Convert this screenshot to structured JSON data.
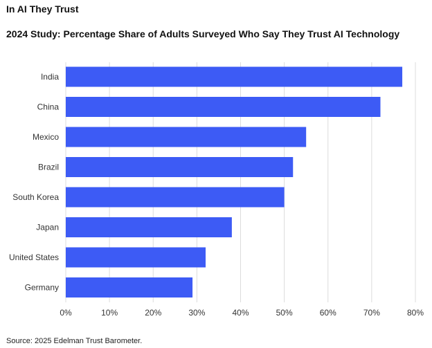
{
  "title": "In AI They Trust",
  "subtitle": "2024 Study: Percentage Share of Adults Surveyed Who Say They Trust AI Technology",
  "source": "Source: 2025 Edelman Trust Barometer.",
  "colors": {
    "bar": "#3d5bf5",
    "grid": "#dcdcdc"
  },
  "chart_data": {
    "type": "bar",
    "orientation": "horizontal",
    "categories": [
      "India",
      "China",
      "Mexico",
      "Brazil",
      "South Korea",
      "Japan",
      "United States",
      "Germany"
    ],
    "values": [
      77,
      72,
      55,
      52,
      50,
      38,
      32,
      29
    ],
    "xlim": [
      0,
      80
    ],
    "xticks": [
      "0%",
      "10%",
      "20%",
      "30%",
      "40%",
      "50%",
      "60%",
      "70%",
      "80%"
    ],
    "xlabel": "",
    "ylabel": "",
    "grid": "vertical"
  }
}
